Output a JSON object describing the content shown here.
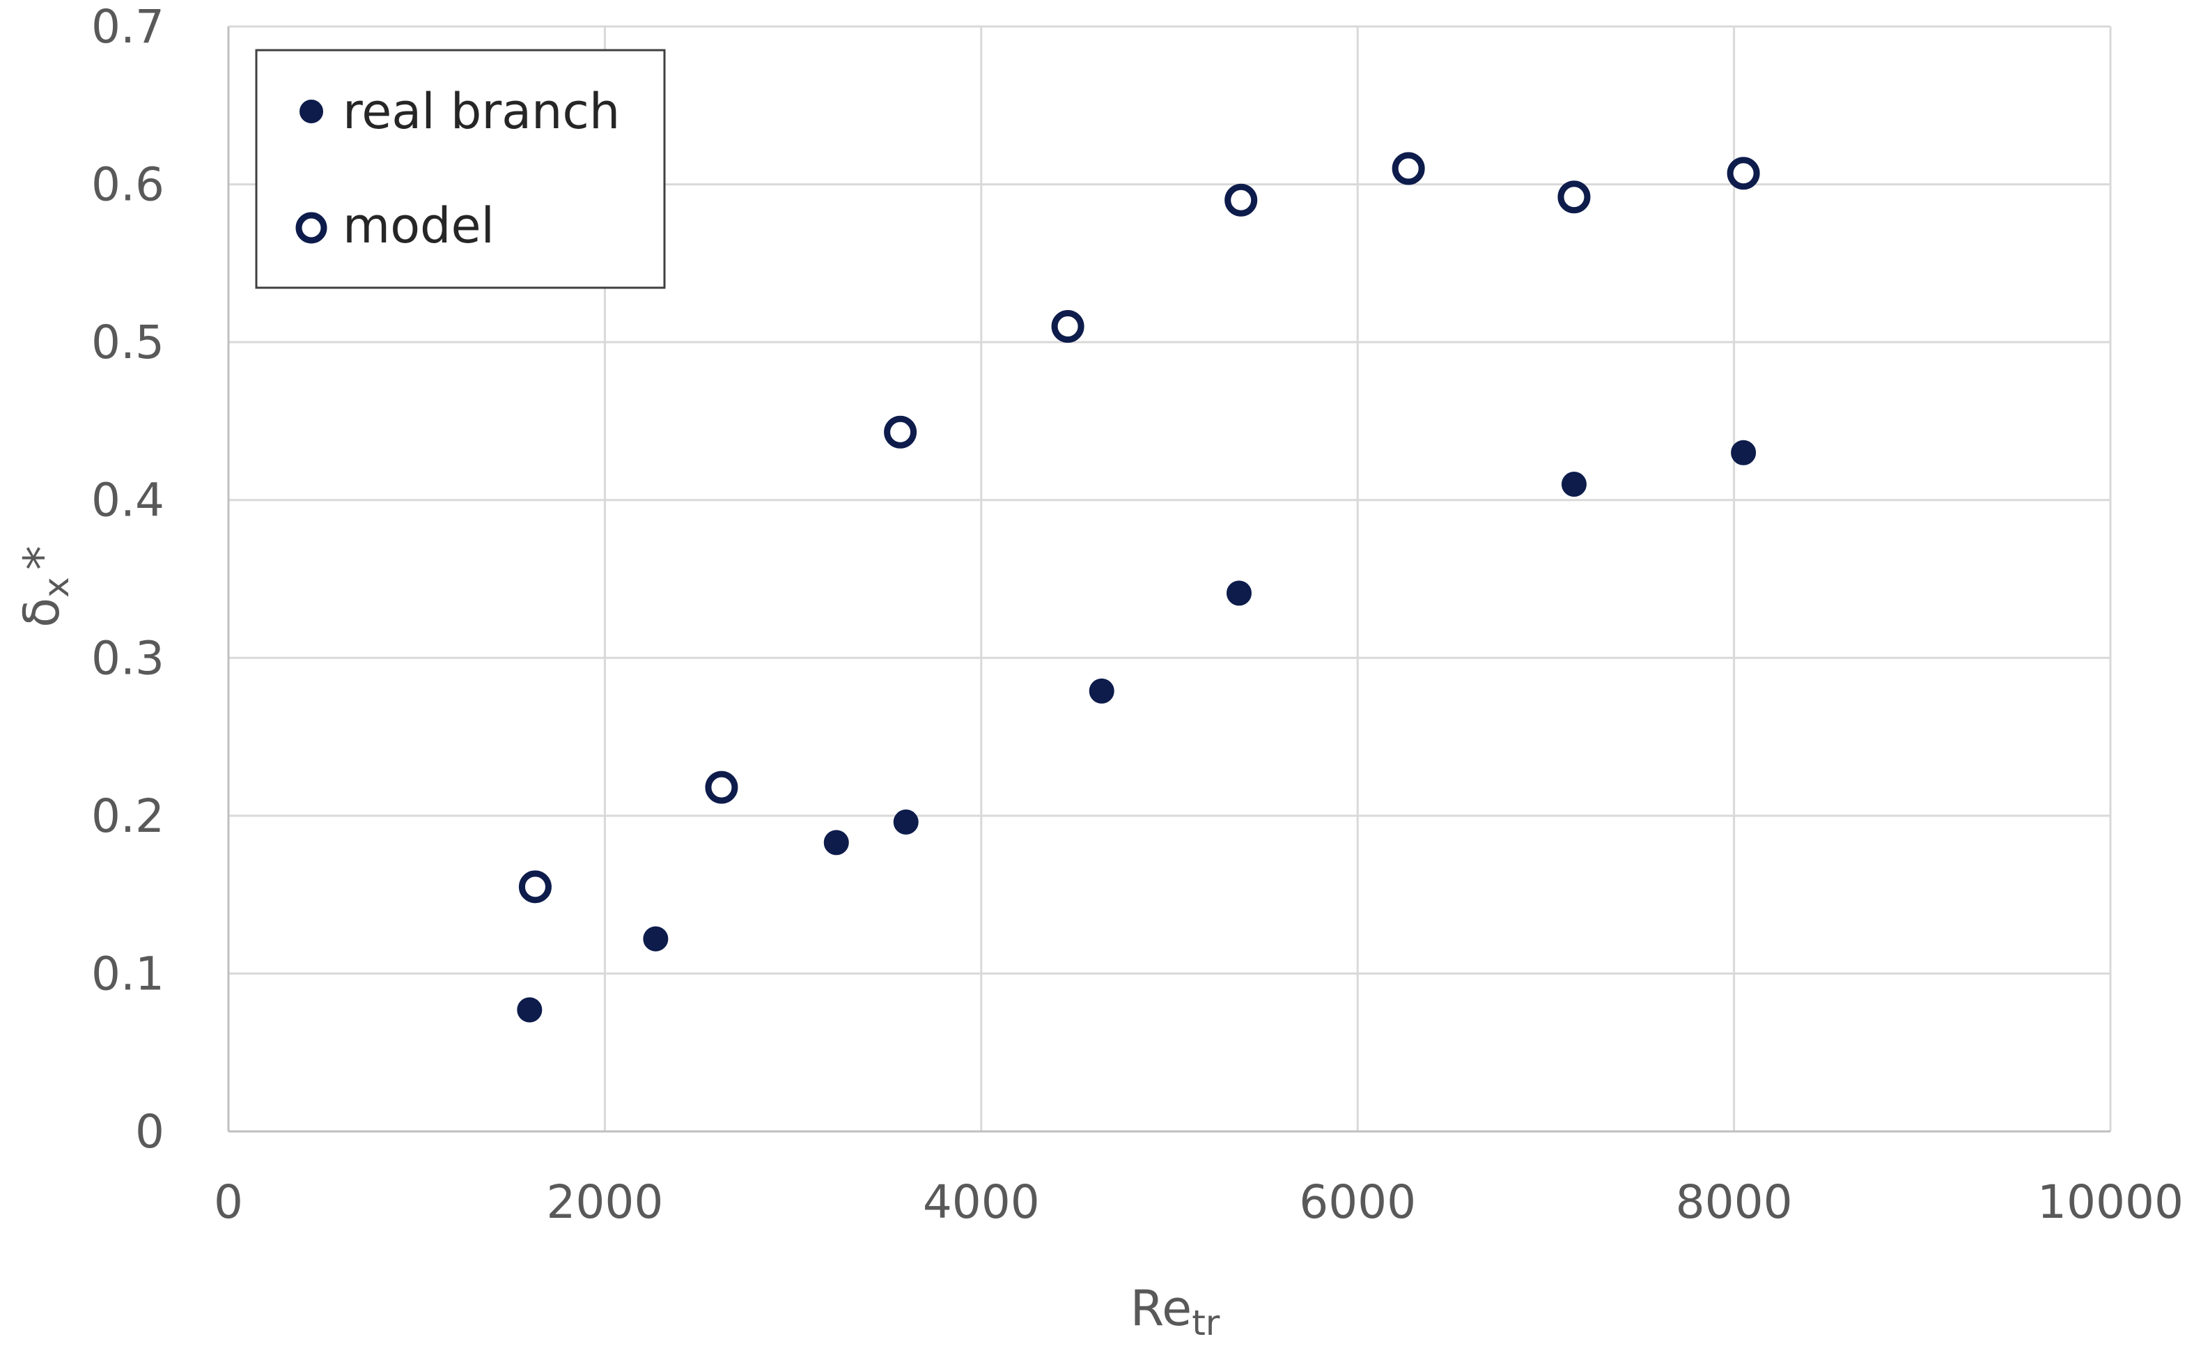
{
  "chart_data": {
    "type": "scatter",
    "xlabel": "Re",
    "xlabel_subscript": "tr",
    "ylabel": "δ",
    "ylabel_subscript": "x",
    "ylabel_suffix": "*",
    "xlim": [
      0,
      10000
    ],
    "ylim": [
      0,
      0.7
    ],
    "xticks": [
      0,
      2000,
      4000,
      6000,
      8000,
      10000
    ],
    "yticks": [
      0,
      0.1,
      0.2,
      0.3,
      0.4,
      0.5,
      0.6,
      0.7
    ],
    "xtick_labels": [
      "0",
      "2000",
      "4000",
      "6000",
      "8000",
      "10000"
    ],
    "ytick_labels": [
      "0",
      "0.1",
      "0.2",
      "0.3",
      "0.4",
      "0.5",
      "0.6",
      "0.7"
    ],
    "grid": true,
    "legend_position": "top-left",
    "colors": {
      "marker": "#0d1c4b",
      "grid": "#d9d9d9",
      "axis": "#bfbfbf",
      "legend_border": "#404040"
    },
    "series": [
      {
        "name": "real branch",
        "marker": "filled-circle",
        "points": [
          {
            "x": 1600,
            "y": 0.077
          },
          {
            "x": 2270,
            "y": 0.122
          },
          {
            "x": 3230,
            "y": 0.183
          },
          {
            "x": 3600,
            "y": 0.196
          },
          {
            "x": 4640,
            "y": 0.279
          },
          {
            "x": 5370,
            "y": 0.341
          },
          {
            "x": 7150,
            "y": 0.41
          },
          {
            "x": 8050,
            "y": 0.43
          }
        ]
      },
      {
        "name": "model",
        "marker": "hollow-circle",
        "points": [
          {
            "x": 1630,
            "y": 0.155
          },
          {
            "x": 2620,
            "y": 0.218
          },
          {
            "x": 3570,
            "y": 0.443
          },
          {
            "x": 4460,
            "y": 0.51
          },
          {
            "x": 5380,
            "y": 0.59
          },
          {
            "x": 6270,
            "y": 0.61
          },
          {
            "x": 7150,
            "y": 0.592
          },
          {
            "x": 8050,
            "y": 0.607
          }
        ]
      }
    ]
  }
}
